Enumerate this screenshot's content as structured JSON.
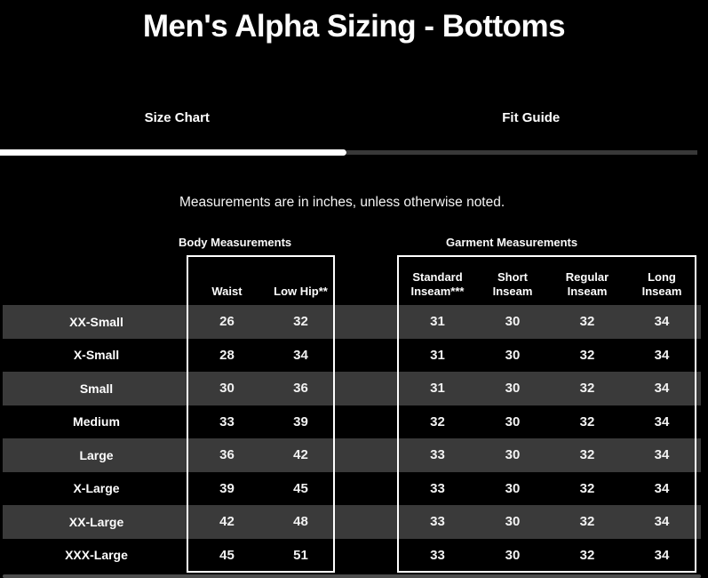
{
  "page": {
    "title": "Men's Alpha Sizing - Bottoms",
    "note": "Measurements are in inches, unless otherwise noted."
  },
  "tabs": [
    {
      "label": "Size Chart",
      "active": true
    },
    {
      "label": "Fit Guide",
      "active": false
    }
  ],
  "table": {
    "group_labels": [
      "Body Measurements",
      "Garment Measurements"
    ],
    "columns": [
      {
        "group": "body",
        "label": "Waist"
      },
      {
        "group": "body",
        "label": "Low Hip**"
      },
      {
        "group": "garment",
        "label": "Standard Inseam***"
      },
      {
        "group": "garment",
        "label": "Short Inseam"
      },
      {
        "group": "garment",
        "label": "Regular Inseam"
      },
      {
        "group": "garment",
        "label": "Long Inseam"
      }
    ],
    "rows": [
      {
        "size": "XX-Small",
        "values": [
          "26",
          "32",
          "31",
          "30",
          "32",
          "34"
        ]
      },
      {
        "size": "X-Small",
        "values": [
          "28",
          "34",
          "31",
          "30",
          "32",
          "34"
        ]
      },
      {
        "size": "Small",
        "values": [
          "30",
          "36",
          "31",
          "30",
          "32",
          "34"
        ]
      },
      {
        "size": "Medium",
        "values": [
          "33",
          "39",
          "32",
          "30",
          "32",
          "34"
        ]
      },
      {
        "size": "Large",
        "values": [
          "36",
          "42",
          "33",
          "30",
          "32",
          "34"
        ]
      },
      {
        "size": "X-Large",
        "values": [
          "39",
          "45",
          "33",
          "30",
          "32",
          "34"
        ]
      },
      {
        "size": "XX-Large",
        "values": [
          "42",
          "48",
          "33",
          "30",
          "32",
          "34"
        ]
      },
      {
        "size": "XXX-Large",
        "values": [
          "45",
          "51",
          "33",
          "30",
          "32",
          "34"
        ]
      }
    ]
  },
  "colors": {
    "background": "#000000",
    "row_stripe": "#3a3a3a",
    "text": "#ffffff",
    "active_tab_indicator": "#ffffff",
    "inactive_tab_indicator": "#383838",
    "table_border": "#ffffff",
    "scrollbar": "#4d4d4d"
  }
}
